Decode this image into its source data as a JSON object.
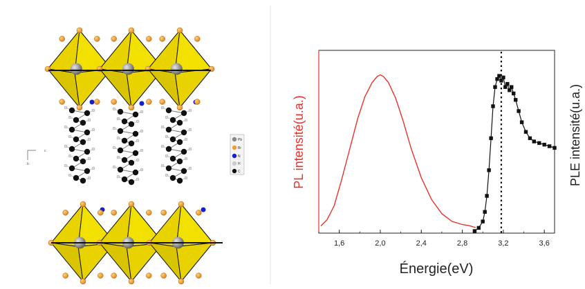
{
  "structure_panel": {
    "legend": [
      {
        "label": "Pb",
        "color": "#888888"
      },
      {
        "label": "Br",
        "color": "#f0a030"
      },
      {
        "label": "N",
        "color": "#1020d0"
      },
      {
        "label": "H",
        "color": "#cccccc"
      },
      {
        "label": "C",
        "color": "#111111"
      }
    ],
    "axes_marker": {
      "c": "c",
      "b": "b"
    },
    "colors": {
      "octahedron": "#e8d200",
      "octahedron_dark": "#a89800",
      "bromine": "#f0a030",
      "lead": "#8a8a8a",
      "carbon": "#111111",
      "nitrogen": "#1020d0"
    }
  },
  "chart_data": {
    "type": "line",
    "xlabel": "Énergie(eV)",
    "ylabel_left": "PL intensité(u.a.)",
    "ylabel_right": "PLE intensité(u.a.)",
    "xlim": [
      1.4,
      3.7
    ],
    "ylim": [
      0,
      1
    ],
    "x_ticks": [
      1.6,
      2.0,
      2.4,
      2.8,
      3.2,
      3.6
    ],
    "x_tick_labels": [
      "1,6",
      "2,0",
      "2,4",
      "2,8",
      "3,2",
      "3,6"
    ],
    "dotted_line_x": 3.18,
    "colors": {
      "PL": "#e8312a",
      "PLE": "#111111",
      "left_axis": "#e8312a"
    },
    "series": [
      {
        "style": "line",
        "color": "#e8312a",
        "x": [
          1.42,
          1.48,
          1.55,
          1.62,
          1.7,
          1.78,
          1.85,
          1.92,
          1.97,
          2.0,
          2.03,
          2.08,
          2.15,
          2.22,
          2.3,
          2.4,
          2.5,
          2.6,
          2.7,
          2.8,
          2.88,
          2.93
        ],
        "y": [
          0.01,
          0.05,
          0.14,
          0.3,
          0.5,
          0.7,
          0.84,
          0.93,
          0.97,
          0.98,
          0.97,
          0.93,
          0.83,
          0.69,
          0.51,
          0.32,
          0.18,
          0.09,
          0.04,
          0.02,
          0.01,
          0.0
        ]
      },
      {
        "style": "line+markers",
        "color": "#111111",
        "x": [
          2.92,
          2.96,
          3.0,
          3.02,
          3.04,
          3.06,
          3.08,
          3.1,
          3.12,
          3.14,
          3.16,
          3.18,
          3.2,
          3.22,
          3.24,
          3.26,
          3.28,
          3.3,
          3.32,
          3.35,
          3.38,
          3.42,
          3.46,
          3.5,
          3.55,
          3.6,
          3.65,
          3.7
        ],
        "y": [
          0.0,
          0.02,
          0.06,
          0.12,
          0.22,
          0.38,
          0.58,
          0.78,
          0.9,
          0.95,
          0.97,
          0.94,
          0.96,
          0.9,
          0.92,
          0.88,
          0.9,
          0.86,
          0.82,
          0.75,
          0.68,
          0.62,
          0.58,
          0.56,
          0.55,
          0.54,
          0.53,
          0.52
        ]
      }
    ]
  }
}
